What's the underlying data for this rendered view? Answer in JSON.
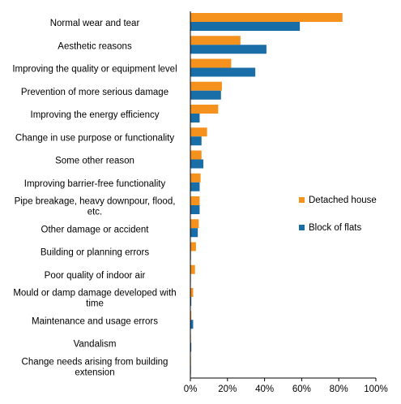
{
  "chart_data": {
    "type": "bar",
    "orientation": "horizontal",
    "categories": [
      [
        "Normal wear and tear"
      ],
      [
        "Aesthetic reasons"
      ],
      [
        "Improving the quality or equipment level"
      ],
      [
        "Prevention of more serious damage"
      ],
      [
        "Improving the energy efficiency"
      ],
      [
        "Change in use purpose or functionality"
      ],
      [
        "Some other reason"
      ],
      [
        "Improving barrier-free functionality"
      ],
      [
        "Pipe breakage, heavy downpour, flood,",
        "etc."
      ],
      [
        "Other damage or accident"
      ],
      [
        "Building or planning errors"
      ],
      [
        "Poor quality of indoor air"
      ],
      [
        "Mould or damp damage developed with",
        "time"
      ],
      [
        "Maintenance and usage errors"
      ],
      [
        "Vandalism"
      ],
      [
        "Change needs arising from building",
        "extension"
      ]
    ],
    "series": [
      {
        "name": "Detached house",
        "color": "#f5921e",
        "values": [
          82,
          27,
          22,
          17,
          15,
          9,
          6,
          5.5,
          5,
          4.5,
          3,
          2.5,
          1.5,
          0.5,
          0.3,
          0.3
        ]
      },
      {
        "name": "Block of flats",
        "color": "#1a6ea8",
        "values": [
          59,
          41,
          35,
          16.5,
          5,
          6,
          7,
          5,
          5,
          4,
          0.3,
          0.2,
          0.5,
          1.5,
          0.5,
          0.3
        ]
      }
    ],
    "xlim": [
      0,
      100
    ],
    "xticks": [
      "0%",
      "20%",
      "40%",
      "60%",
      "80%",
      "100%"
    ],
    "xlabel": "",
    "ylabel": "",
    "title": "",
    "grid": false,
    "legend_position": "right"
  }
}
